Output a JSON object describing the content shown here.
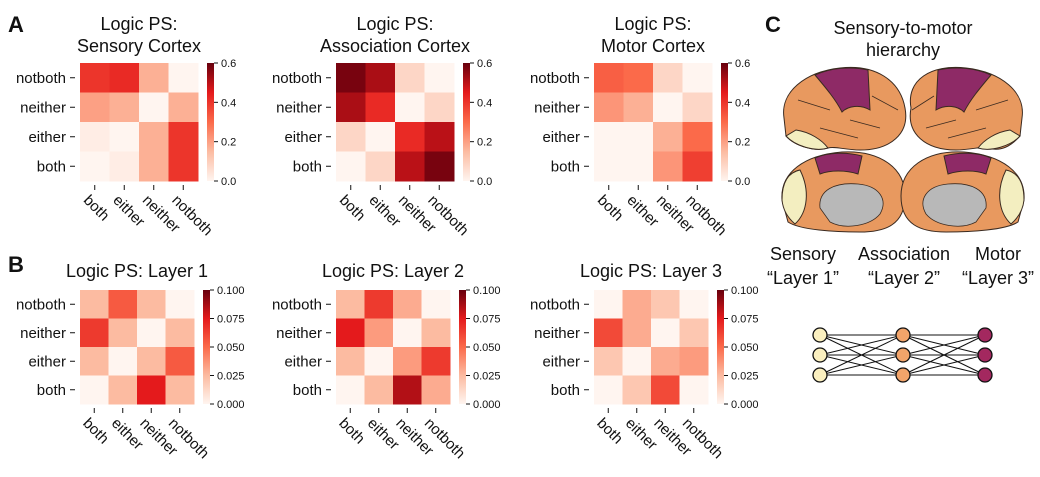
{
  "panel_labels": {
    "a": "A",
    "b": "B",
    "c": "C"
  },
  "colors": {
    "cmap_low": "#fff5f0",
    "cmap_mid1": "#fcbba1",
    "cmap_mid2": "#fb6a4a",
    "cmap_mid3": "#e41a1c",
    "cmap_high": "#67000d",
    "sensory_node": "#fbf0c0",
    "association_node": "#f2a46a",
    "motor_node": "#a3285f",
    "cortex_orange": "#e8995f",
    "cortex_cream": "#f3eec0",
    "cortex_purple": "#8e2a66",
    "medial_gray": "#b8b8b8"
  },
  "panel_c": {
    "title_line1": "Sensory-to-motor",
    "title_line2": "hierarchy",
    "columns": [
      {
        "name": "Sensory",
        "layer": "“Layer 1”"
      },
      {
        "name": "Association",
        "layer": "“Layer 2”"
      },
      {
        "name": "Motor",
        "layer": "“Layer 3”"
      }
    ],
    "network_layers": [
      3,
      3,
      3
    ]
  },
  "chart_data": [
    {
      "type": "heatmap",
      "title": [
        "Logic PS:",
        "Sensory Cortex"
      ],
      "rows": [
        "notboth",
        "neither",
        "either",
        "both"
      ],
      "cols": [
        "both",
        "either",
        "neither",
        "notboth"
      ],
      "values": [
        [
          0.4,
          0.42,
          0.17,
          0.0
        ],
        [
          0.2,
          0.17,
          0.0,
          0.17
        ],
        [
          0.02,
          0.0,
          0.17,
          0.4
        ],
        [
          0.0,
          0.02,
          0.17,
          0.4
        ]
      ],
      "vmin": 0,
      "vmax": 0.6,
      "colorbar_ticks": [
        "0.0",
        "0.2",
        "0.4",
        "0.6"
      ]
    },
    {
      "type": "heatmap",
      "title": [
        "Logic PS:",
        "Association Cortex"
      ],
      "rows": [
        "notboth",
        "neither",
        "either",
        "both"
      ],
      "cols": [
        "both",
        "either",
        "neither",
        "notboth"
      ],
      "values": [
        [
          0.58,
          0.52,
          0.08,
          0.0
        ],
        [
          0.52,
          0.42,
          0.0,
          0.08
        ],
        [
          0.08,
          0.0,
          0.42,
          0.5
        ],
        [
          0.0,
          0.08,
          0.5,
          0.58
        ]
      ],
      "vmin": 0,
      "vmax": 0.6,
      "colorbar_ticks": [
        "0.0",
        "0.2",
        "0.4",
        "0.6"
      ]
    },
    {
      "type": "heatmap",
      "title": [
        "Logic PS:",
        "Motor Cortex"
      ],
      "rows": [
        "notboth",
        "neither",
        "either",
        "both"
      ],
      "cols": [
        "both",
        "either",
        "neither",
        "notboth"
      ],
      "values": [
        [
          0.32,
          0.3,
          0.08,
          0.0
        ],
        [
          0.22,
          0.17,
          0.0,
          0.08
        ],
        [
          0.0,
          0.0,
          0.17,
          0.3
        ],
        [
          0.0,
          0.0,
          0.22,
          0.38
        ]
      ],
      "vmin": 0,
      "vmax": 0.6,
      "colorbar_ticks": [
        "0.0",
        "0.2",
        "0.4",
        "0.6"
      ]
    },
    {
      "type": "heatmap",
      "title": [
        "Logic PS: Layer 1"
      ],
      "rows": [
        "notboth",
        "neither",
        "either",
        "both"
      ],
      "cols": [
        "both",
        "either",
        "neither",
        "notboth"
      ],
      "values": [
        [
          0.025,
          0.055,
          0.025,
          0.0
        ],
        [
          0.065,
          0.025,
          0.0,
          0.025
        ],
        [
          0.025,
          0.0,
          0.025,
          0.055
        ],
        [
          0.0,
          0.025,
          0.075,
          0.025
        ]
      ],
      "vmin": 0,
      "vmax": 0.1,
      "colorbar_ticks": [
        "0.000",
        "0.025",
        "0.050",
        "0.075",
        "0.100"
      ]
    },
    {
      "type": "heatmap",
      "title": [
        "Logic PS: Layer 2"
      ],
      "rows": [
        "notboth",
        "neither",
        "either",
        "both"
      ],
      "cols": [
        "both",
        "either",
        "neither",
        "notboth"
      ],
      "values": [
        [
          0.025,
          0.065,
          0.03,
          0.0
        ],
        [
          0.075,
          0.035,
          0.0,
          0.025
        ],
        [
          0.025,
          0.0,
          0.035,
          0.065
        ],
        [
          0.0,
          0.025,
          0.085,
          0.03
        ]
      ],
      "vmin": 0,
      "vmax": 0.1,
      "colorbar_ticks": [
        "0.000",
        "0.025",
        "0.050",
        "0.075",
        "0.100"
      ]
    },
    {
      "type": "heatmap",
      "title": [
        "Logic PS: Layer 3"
      ],
      "rows": [
        "notboth",
        "neither",
        "either",
        "both"
      ],
      "cols": [
        "both",
        "either",
        "neither",
        "notboth"
      ],
      "values": [
        [
          0.0,
          0.03,
          0.02,
          0.0
        ],
        [
          0.06,
          0.03,
          0.0,
          0.02
        ],
        [
          0.02,
          0.0,
          0.03,
          0.035
        ],
        [
          0.0,
          0.02,
          0.06,
          0.0
        ]
      ],
      "vmin": 0,
      "vmax": 0.1,
      "colorbar_ticks": [
        "0.000",
        "0.025",
        "0.050",
        "0.075",
        "0.100"
      ]
    }
  ]
}
